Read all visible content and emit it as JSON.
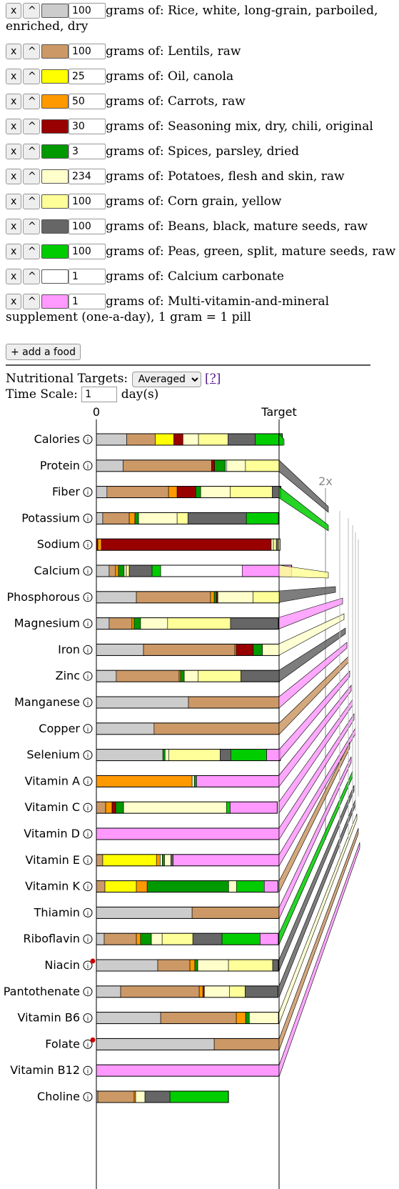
{
  "foods": [
    {
      "qty": "100",
      "label": "grams of: Rice, white, long-grain, parboiled, enriched, dry",
      "color": "#cccccc"
    },
    {
      "qty": "100",
      "label": "grams of: Lentils, raw",
      "color": "#cc9966"
    },
    {
      "qty": "25",
      "label": "grams of: Oil, canola",
      "color": "#ffff00"
    },
    {
      "qty": "50",
      "label": "grams of: Carrots, raw",
      "color": "#ff9900"
    },
    {
      "qty": "30",
      "label": "grams of: Seasoning mix, dry, chili, original",
      "color": "#990000"
    },
    {
      "qty": "3",
      "label": "grams of: Spices, parsley, dried",
      "color": "#009900"
    },
    {
      "qty": "234",
      "label": "grams of: Potatoes, flesh and skin, raw",
      "color": "#ffffcc"
    },
    {
      "qty": "100",
      "label": "grams of: Corn grain, yellow",
      "color": "#ffff99"
    },
    {
      "qty": "100",
      "label": "grams of: Beans, black, mature seeds, raw",
      "color": "#666666"
    },
    {
      "qty": "100",
      "label": "grams of: Peas, green, split, mature seeds, raw",
      "color": "#00cc00"
    },
    {
      "qty": "1",
      "label": "grams of: Calcium carbonate",
      "color": "#ffffff"
    },
    {
      "qty": "1",
      "label": "grams of: Multi-vitamin-and-mineral supplement (one-a-day), 1 gram = 1 pill",
      "color": "#ff99ff"
    }
  ],
  "buttons": {
    "remove": "x",
    "up": "^",
    "add_food": "+ add a food"
  },
  "settings": {
    "targets_label": "Nutritional Targets:",
    "targets_value": "Averaged",
    "help": "[?]",
    "time_label": "Time Scale:",
    "time_value": "1",
    "time_unit": "day(s)"
  },
  "chart_data": {
    "type": "bar",
    "stacked": true,
    "axis_labels": {
      "zero": "0",
      "target": "Target",
      "double": "2x"
    },
    "info_icon": "info-icon",
    "warning_color": "#cc0000",
    "nutrients": [
      {
        "name": "Calories",
        "segments": [
          0.166,
          0.156,
          0.102,
          0.05,
          0.085,
          0.161,
          0.15,
          0.128,
          0.02
        ]
      },
      {
        "name": "Protein",
        "segments": [
          0.147,
          0.484,
          0.016,
          0.059,
          0.008,
          0.102,
          0.184
        ]
      },
      {
        "name": "Fiber",
        "segments": [
          0.058,
          0.337,
          0.047,
          0.102,
          0.027,
          0.161,
          0.231,
          0.047
        ]
      },
      {
        "name": "Potassium",
        "segments": [
          0.035,
          0.145,
          0.031,
          0.02,
          0.211,
          0.059,
          0.32,
          0.176
        ]
      },
      {
        "name": "Sodium",
        "segments": [
          0.008,
          0.02,
          0.929,
          0.012,
          0.016,
          0.012,
          0.008
        ]
      },
      {
        "name": "Calcium",
        "segments": [
          0.07,
          0.035,
          0.016,
          0.031,
          0.012,
          0.016,
          0.125,
          0.047,
          0.446,
          0.271
        ]
      },
      {
        "name": "Phosphorous",
        "segments": [
          0.219,
          0.406,
          0.02,
          0.012,
          0.008,
          0.192,
          0.145
        ]
      },
      {
        "name": "Magnesium",
        "segments": [
          0.07,
          0.125,
          0.012,
          0.035,
          0.148,
          0.344,
          0.262
        ]
      },
      {
        "name": "Iron",
        "segments": [
          0.258,
          0.5,
          0.008,
          0.092,
          0.051,
          0.092
        ]
      },
      {
        "name": "Zinc",
        "segments": [
          0.109,
          0.344,
          0.008,
          0.02,
          0.075,
          0.235,
          0.211
        ]
      },
      {
        "name": "Manganese",
        "segments": [
          0.504,
          0.496
        ]
      },
      {
        "name": "Copper",
        "segments": [
          0.316,
          0.684
        ]
      },
      {
        "name": "Selenium",
        "segments": [
          0.364,
          0.012,
          0.02,
          0.281,
          0.059,
          0.196,
          0.075
        ]
      },
      {
        "name": "Vitamin A",
        "segments": [
          0.524,
          0.012,
          0.012,
          0.452
        ]
      },
      {
        "name": "Vitamin C",
        "segments": [
          0.051,
          0.035,
          0.02,
          0.043,
          0.563,
          0.02,
          0.258
        ]
      },
      {
        "name": "Vitamin D",
        "segments": [
          1.0
        ]
      },
      {
        "name": "Vitamin E",
        "segments": [
          0.035,
          0.294,
          0.02,
          0.012,
          0.012,
          0.035,
          0.012,
          0.58
        ]
      },
      {
        "name": "Vitamin K",
        "segments": [
          0.047,
          0.172,
          0.059,
          0.446,
          0.043,
          0.152,
          0.075
        ]
      },
      {
        "name": "Thiamin",
        "segments": [
          0.524,
          0.476
        ]
      },
      {
        "name": "Riboflavin",
        "segments": [
          0.043,
          0.176,
          0.023,
          0.059,
          0.059,
          0.168,
          0.16,
          0.208,
          0.1
        ]
      },
      {
        "name": "Niacin",
        "warning": true,
        "segments": [
          0.336,
          0.176,
          0.027,
          0.016,
          0.168,
          0.242,
          0.031
        ]
      },
      {
        "name": "Pantothenate",
        "segments": [
          0.133,
          0.43,
          0.02,
          0.008,
          0.137,
          0.086,
          0.18
        ]
      },
      {
        "name": "Vitamin B6",
        "segments": [
          0.352,
          0.414,
          0.051,
          0.02,
          0.16
        ]
      },
      {
        "name": "Folate",
        "warning": true,
        "segments": [
          0.645,
          0.355
        ]
      },
      {
        "name": "Vitamin B12",
        "segments": [
          1.0
        ]
      },
      {
        "name": "Choline",
        "segments": [
          0.008,
          0.199,
          0.008,
          0.051,
          0.137,
          0.32
        ]
      }
    ],
    "segment_colors": {
      "Calories": [
        "#cccccc",
        "#cc9966",
        "#ffff00",
        "#990000",
        "#ffffcc",
        "#ffff99",
        "#666666",
        "#00cc00",
        "#00cc00"
      ],
      "Protein": [
        "#cccccc",
        "#cc9966",
        "#990000",
        "#009900",
        "#ffffff",
        "#ffffcc",
        "#ffff99"
      ],
      "Fiber": [
        "#cccccc",
        "#cc9966",
        "#ff9900",
        "#990000",
        "#009900",
        "#ffffcc",
        "#ffff99",
        "#666666"
      ],
      "Potassium": [
        "#cccccc",
        "#cc9966",
        "#ff9900",
        "#009900",
        "#ffffcc",
        "#ffff99",
        "#666666",
        "#00cc00"
      ],
      "Sodium": [
        "#990000",
        "#ff9900",
        "#990000",
        "#ffffcc",
        "#ffff99",
        "#666666",
        "#ffff99"
      ],
      "Calcium": [
        "#cccccc",
        "#cc9966",
        "#ff9900",
        "#009900",
        "#ffffcc",
        "#ffff99",
        "#666666",
        "#00cc00",
        "#ffffff",
        "#ff99ff"
      ],
      "Phosphorous": [
        "#cccccc",
        "#cc9966",
        "#ff9900",
        "#009900",
        "#990000",
        "#ffffcc",
        "#ffff99"
      ],
      "Magnesium": [
        "#cccccc",
        "#cc9966",
        "#ff9900",
        "#009900",
        "#ffffcc",
        "#ffff99",
        "#666666"
      ],
      "Iron": [
        "#cccccc",
        "#cc9966",
        "#ff9900",
        "#990000",
        "#009900",
        "#ffffcc"
      ],
      "Zinc": [
        "#cccccc",
        "#cc9966",
        "#ff9900",
        "#009900",
        "#ffffcc",
        "#ffff99",
        "#666666"
      ],
      "Manganese": [
        "#cccccc",
        "#cc9966"
      ],
      "Copper": [
        "#cccccc",
        "#cc9966"
      ],
      "Selenium": [
        "#cccccc",
        "#009900",
        "#ffffcc",
        "#ffff99",
        "#666666",
        "#00cc00",
        "#ff99ff"
      ],
      "Vitamin A": [
        "#ff9900",
        "#ffffcc",
        "#009900",
        "#ff99ff"
      ],
      "Vitamin C": [
        "#cc9966",
        "#ff9900",
        "#990000",
        "#009900",
        "#ffffcc",
        "#00cc00",
        "#ff99ff"
      ],
      "Vitamin D": [
        "#ff99ff"
      ],
      "Vitamin E": [
        "#cc9966",
        "#ffff00",
        "#ff9900",
        "#ffffcc",
        "#009900",
        "#ffffcc",
        "#666666",
        "#ff99ff"
      ],
      "Vitamin K": [
        "#cc9966",
        "#ffff00",
        "#ff9900",
        "#009900",
        "#ffffcc",
        "#00cc00",
        "#ff99ff"
      ],
      "Thiamin": [
        "#cccccc",
        "#cc9966"
      ],
      "Riboflavin": [
        "#cccccc",
        "#cc9966",
        "#ff9900",
        "#009900",
        "#ffffcc",
        "#ffff99",
        "#666666",
        "#00cc00",
        "#ff99ff"
      ],
      "Niacin": [
        "#cccccc",
        "#cc9966",
        "#ff9900",
        "#009900",
        "#ffffcc",
        "#ffff99",
        "#666666"
      ],
      "Pantothenate": [
        "#cccccc",
        "#cc9966",
        "#ff9900",
        "#990000",
        "#ffffcc",
        "#ffff99",
        "#666666"
      ],
      "Vitamin B6": [
        "#cccccc",
        "#cc9966",
        "#ff9900",
        "#009900",
        "#ffffcc"
      ],
      "Folate": [
        "#cccccc",
        "#cc9966"
      ],
      "Vitamin B12": [
        "#ff99ff"
      ],
      "Choline": [
        "#cccccc",
        "#cc9966",
        "#ff9900",
        "#ffffcc",
        "#666666",
        "#00cc00"
      ]
    }
  }
}
